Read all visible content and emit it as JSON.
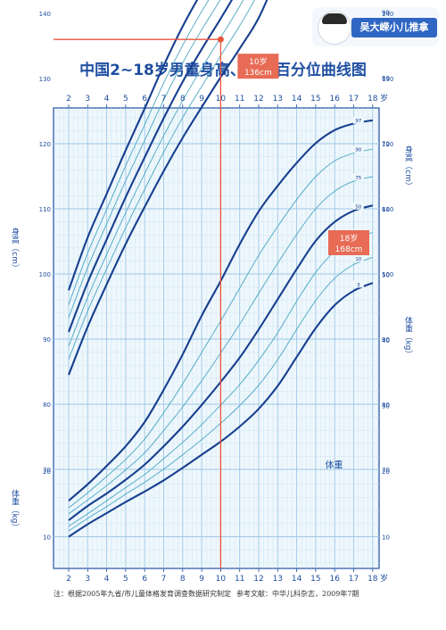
{
  "brand": {
    "label": "吴大嵘小儿推拿",
    "icon": "cartoon-face-icon"
  },
  "colors": {
    "main": "#1e4ea0",
    "grid_major": "#9fc7e6",
    "grid_minor": "#cfe6f4",
    "curve_main": "#173f8f",
    "curve_mid": "#2c73b8",
    "curve_thin": "#4aa6c2",
    "marker": "#e8553e",
    "label_bg": "#e76b55",
    "highlight": "#e8553e"
  },
  "chart_data": {
    "type": "line",
    "title": "中国2~18岁男童身高、体重百分位曲线图",
    "x": [
      2,
      3,
      4,
      5,
      6,
      7,
      8,
      9,
      10,
      11,
      12,
      13,
      14,
      15,
      16,
      17,
      18
    ],
    "x_tick_labels": [
      "2",
      "3",
      "4",
      "5",
      "6",
      "7",
      "8",
      "9",
      "10",
      "11",
      "12",
      "13",
      "14",
      "15",
      "16",
      "17",
      "18"
    ],
    "x_unit": "岁",
    "xlim": [
      2,
      18
    ],
    "ylim": [
      0,
      190
    ],
    "y_ticks_height": [
      "70",
      "80",
      "90",
      "100",
      "110",
      "120",
      "130",
      "140",
      "150",
      "160",
      "170",
      "180",
      "190"
    ],
    "y_ticks_weight": [
      "10",
      "20",
      "30",
      "40",
      "50",
      "60",
      "70",
      "80",
      "90"
    ],
    "y_label_height": "身高（cm）",
    "y_label_weight": "体重（kg）",
    "grid": true,
    "curve_group_labels": {
      "height": "身高",
      "weight": "体重"
    },
    "height_series": [
      {
        "name": "3",
        "values": [
          84.5,
          91.9,
          98.4,
          104.6,
          110.3,
          115.8,
          120.9,
          125.6,
          130.2,
          134.6,
          139.3,
          146.0,
          153.5,
          158.8,
          161.2,
          162.3,
          162.8
        ]
      },
      {
        "name": "10",
        "values": [
          86.9,
          94.3,
          100.8,
          107.1,
          113.0,
          118.7,
          124.0,
          128.8,
          133.5,
          138.1,
          143.3,
          150.2,
          157.2,
          161.8,
          163.9,
          164.8,
          165.1
        ]
      },
      {
        "name": "25",
        "values": [
          88.9,
          96.4,
          103.0,
          109.4,
          115.4,
          121.2,
          126.6,
          131.6,
          136.3,
          141.1,
          146.6,
          153.6,
          160.1,
          164.4,
          166.3,
          167.0,
          167.3
        ]
      },
      {
        "name": "50",
        "values": [
          91.1,
          98.7,
          105.3,
          111.8,
          117.9,
          123.9,
          129.5,
          134.5,
          139.2,
          144.2,
          150.0,
          157.1,
          163.1,
          167.1,
          168.8,
          169.4,
          169.7
        ]
      },
      {
        "name": "75",
        "values": [
          93.3,
          101.0,
          107.7,
          114.3,
          120.5,
          126.7,
          132.4,
          137.5,
          142.2,
          147.4,
          153.6,
          160.7,
          166.2,
          169.8,
          171.3,
          171.8,
          172.0
        ]
      },
      {
        "name": "90",
        "values": [
          95.3,
          103.2,
          109.9,
          116.6,
          122.9,
          129.3,
          135.1,
          140.3,
          145.1,
          150.5,
          157.1,
          164.1,
          169.1,
          172.3,
          173.6,
          174.0,
          174.2
        ]
      },
      {
        "name": "97",
        "values": [
          97.5,
          105.6,
          112.3,
          119.0,
          125.4,
          132.0,
          138.0,
          143.3,
          148.2,
          154.0,
          161.0,
          167.7,
          172.1,
          174.9,
          176.0,
          176.3,
          176.4
        ]
      }
    ],
    "weight_series": [
      {
        "name": "3",
        "values": [
          10.0,
          11.9,
          13.6,
          15.3,
          16.9,
          18.6,
          20.5,
          22.5,
          24.5,
          26.8,
          29.5,
          33.0,
          37.4,
          41.8,
          45.3,
          47.5,
          48.7
        ]
      },
      {
        "name": "10",
        "values": [
          10.9,
          12.8,
          14.6,
          16.5,
          18.3,
          20.3,
          22.5,
          24.8,
          27.3,
          30.0,
          33.1,
          37.0,
          41.6,
          46.0,
          49.4,
          51.5,
          52.6
        ]
      },
      {
        "name": "25",
        "values": [
          11.6,
          13.5,
          15.5,
          17.5,
          19.5,
          21.9,
          24.4,
          27.1,
          30.1,
          33.2,
          36.9,
          41.1,
          45.9,
          50.3,
          53.5,
          55.4,
          56.4
        ]
      },
      {
        "name": "50",
        "values": [
          12.5,
          14.7,
          16.6,
          18.7,
          21.0,
          23.8,
          26.8,
          30.1,
          33.6,
          37.3,
          41.6,
          46.2,
          50.8,
          55.1,
          58.0,
          59.7,
          60.5
        ]
      },
      {
        "name": "75",
        "values": [
          13.5,
          15.6,
          17.8,
          20.2,
          22.8,
          26.2,
          29.8,
          33.8,
          38.0,
          42.4,
          47.1,
          51.7,
          56.1,
          60.0,
          62.7,
          64.2,
          64.9
        ]
      },
      {
        "name": "90",
        "values": [
          14.4,
          16.7,
          19.2,
          21.8,
          24.9,
          28.9,
          33.3,
          38.1,
          42.9,
          47.9,
          52.9,
          57.3,
          61.4,
          64.9,
          67.3,
          68.5,
          69.1
        ]
      },
      {
        "name": "97",
        "values": [
          15.5,
          18.0,
          20.8,
          23.8,
          27.5,
          32.4,
          37.8,
          43.7,
          49.0,
          54.6,
          59.6,
          63.5,
          67.0,
          70.0,
          72.0,
          73.0,
          73.5
        ]
      }
    ],
    "annotations": [
      {
        "label_line1": "10岁",
        "label_line2": "136cm",
        "x": 10,
        "y": 136
      },
      {
        "label_line1": "18岁",
        "label_line2": "168cm",
        "x": 18,
        "y": 168
      }
    ]
  },
  "footnote": "注：根据2005年九省/市儿童体格发育调查数据研究制定",
  "reference": "参考文献：中华儿科杂志，2009年7期"
}
